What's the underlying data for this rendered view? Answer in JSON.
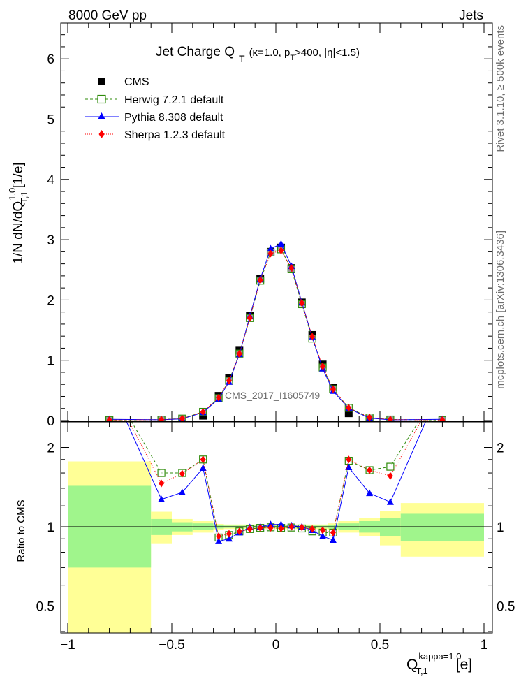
{
  "header": {
    "left": "8000 GeV pp",
    "right": "Jets"
  },
  "side_labels": {
    "rivet": "Rivet 3.1.10, ≥ 500k events",
    "mcplots": "mcplots.cern.ch [arXiv:1306.3436]"
  },
  "chart_data": [
    {
      "type": "scatter",
      "title": "Jet Charge Q",
      "title_sub": "T",
      "title_cuts": "(κ=1.0, p",
      "title_cuts_sub": "T",
      "title_cuts_tail": ">400, |η|<1.5)",
      "ylabel_main": "1/N dN/dQ",
      "ylabel_sup": "1.0",
      "ylabel_sub": "T,1",
      "ylabel_unit": "[1/e]",
      "watermark": "CMS_2017_I1605749",
      "xlim": [
        -1.02,
        1.04
      ],
      "ylim": [
        0,
        6.6
      ],
      "yticks": [
        0,
        1,
        2,
        3,
        4,
        5,
        6
      ],
      "legend_position": "top-left",
      "x": [
        -0.8,
        -0.55,
        -0.45,
        -0.35,
        -0.275,
        -0.225,
        -0.175,
        -0.125,
        -0.075,
        -0.025,
        0.025,
        0.075,
        0.125,
        0.175,
        0.225,
        0.275,
        0.35,
        0.45,
        0.55,
        0.8
      ],
      "series": [
        {
          "name": "CMS",
          "color": "#000000",
          "marker": "square",
          "values": [
            0.005,
            0.01,
            0.02,
            0.08,
            0.41,
            0.71,
            1.16,
            1.74,
            2.35,
            2.8,
            2.87,
            2.53,
            1.96,
            1.42,
            0.93,
            0.55,
            0.12,
            0.03,
            0.01,
            0.005
          ]
        },
        {
          "name": "Herwig 7.2.1 default",
          "color": "#2e8b0a",
          "marker": "open-square",
          "dash": "4,3",
          "values": [
            0.008,
            0.016,
            0.032,
            0.144,
            0.37,
            0.66,
            1.11,
            1.7,
            2.32,
            2.79,
            2.84,
            2.51,
            1.93,
            1.36,
            0.88,
            0.52,
            0.21,
            0.05,
            0.017,
            0.008
          ]
        },
        {
          "name": "Pythia 8.308 default",
          "color": "#0000ff",
          "marker": "triangle",
          "dash": "",
          "values": [
            0.02,
            0.013,
            0.027,
            0.134,
            0.36,
            0.64,
            1.1,
            1.73,
            2.35,
            2.85,
            2.93,
            2.56,
            1.96,
            1.38,
            0.86,
            0.49,
            0.2,
            0.04,
            0.012,
            0.02
          ]
        },
        {
          "name": "Sherpa 1.2.3 default",
          "color": "#ff0000",
          "marker": "diamond",
          "dash": "1,2",
          "values": [
            0.008,
            0.014,
            0.032,
            0.144,
            0.38,
            0.66,
            1.11,
            1.7,
            2.33,
            2.77,
            2.82,
            2.53,
            1.95,
            1.39,
            0.9,
            0.52,
            0.21,
            0.05,
            0.016,
            0.008
          ]
        }
      ]
    },
    {
      "type": "line",
      "ylabel": "Ratio to CMS",
      "xlabel_main": "Q",
      "xlabel_sup": "kappa=1.0",
      "xlabel_sub": "T,1",
      "xlabel_unit": "[e]",
      "xlim": [
        -1.02,
        1.04
      ],
      "ylim": [
        0.35,
        2.35
      ],
      "yticks": [
        0.5,
        1,
        2
      ],
      "xticks": [
        -1,
        -0.5,
        0,
        0.5,
        1
      ],
      "xtick_labels": [
        "−1",
        "−0.5",
        "0",
        "0.5",
        "1"
      ],
      "ytick_labels": [
        "0.5",
        "1",
        "2"
      ],
      "band_colors": {
        "inner": "#a0f58c",
        "outer": "#ffff96"
      },
      "bands": [
        {
          "x0": -1.0,
          "x1": -0.6,
          "inner": [
            0.7,
            1.43
          ],
          "outer": [
            0.35,
            1.77
          ]
        },
        {
          "x0": -0.6,
          "x1": -0.5,
          "inner": [
            0.93,
            1.07
          ],
          "outer": [
            0.86,
            1.14
          ]
        },
        {
          "x0": -0.5,
          "x1": -0.4,
          "inner": [
            0.96,
            1.04
          ],
          "outer": [
            0.93,
            1.07
          ]
        },
        {
          "x0": -0.4,
          "x1": -0.3,
          "inner": [
            0.97,
            1.03
          ],
          "outer": [
            0.95,
            1.05
          ]
        },
        {
          "x0": -0.3,
          "x1": -0.25,
          "inner": [
            0.985,
            1.015
          ],
          "outer": [
            0.975,
            1.025
          ]
        },
        {
          "x0": -0.25,
          "x1": 0.25,
          "inner": [
            0.99,
            1.01
          ],
          "outer": [
            0.98,
            1.02
          ]
        },
        {
          "x0": 0.25,
          "x1": 0.3,
          "inner": [
            0.985,
            1.015
          ],
          "outer": [
            0.97,
            1.03
          ]
        },
        {
          "x0": 0.3,
          "x1": 0.4,
          "inner": [
            0.97,
            1.03
          ],
          "outer": [
            0.95,
            1.05
          ]
        },
        {
          "x0": 0.4,
          "x1": 0.5,
          "inner": [
            0.95,
            1.05
          ],
          "outer": [
            0.92,
            1.08
          ]
        },
        {
          "x0": 0.5,
          "x1": 0.6,
          "inner": [
            0.92,
            1.08
          ],
          "outer": [
            0.85,
            1.15
          ]
        },
        {
          "x0": 0.6,
          "x1": 1.0,
          "inner": [
            0.88,
            1.12
          ],
          "outer": [
            0.77,
            1.23
          ]
        }
      ],
      "x": [
        -0.8,
        -0.55,
        -0.45,
        -0.35,
        -0.275,
        -0.225,
        -0.175,
        -0.125,
        -0.075,
        -0.025,
        0.025,
        0.075,
        0.125,
        0.175,
        0.225,
        0.275,
        0.35,
        0.45,
        0.55,
        0.8
      ],
      "series": [
        {
          "name": "Herwig 7.2.1 default",
          "color": "#2e8b0a",
          "marker": "open-square",
          "dash": "4,3",
          "values": [
            3.5,
            1.6,
            1.6,
            1.8,
            0.91,
            0.93,
            0.96,
            0.98,
            0.99,
            0.995,
            0.99,
            0.993,
            0.985,
            0.96,
            0.95,
            0.95,
            1.78,
            1.64,
            1.69,
            3.5
          ]
        },
        {
          "name": "Pythia 8.308 default",
          "color": "#0000ff",
          "marker": "triangle",
          "dash": "",
          "values": [
            3.5,
            1.27,
            1.35,
            1.67,
            0.88,
            0.9,
            0.95,
            0.995,
            1.0,
            1.02,
            1.02,
            1.01,
            1.0,
            0.97,
            0.92,
            0.89,
            1.68,
            1.34,
            1.24,
            3.5
          ]
        },
        {
          "name": "Sherpa 1.2.3 default",
          "color": "#ff0000",
          "marker": "diamond",
          "dash": "1,2",
          "values": [
            3.5,
            1.46,
            1.59,
            1.8,
            0.92,
            0.94,
            0.96,
            0.98,
            0.99,
            0.99,
            0.985,
            1.0,
            0.995,
            0.98,
            0.97,
            0.95,
            1.8,
            1.64,
            1.56,
            3.5
          ]
        }
      ]
    }
  ]
}
